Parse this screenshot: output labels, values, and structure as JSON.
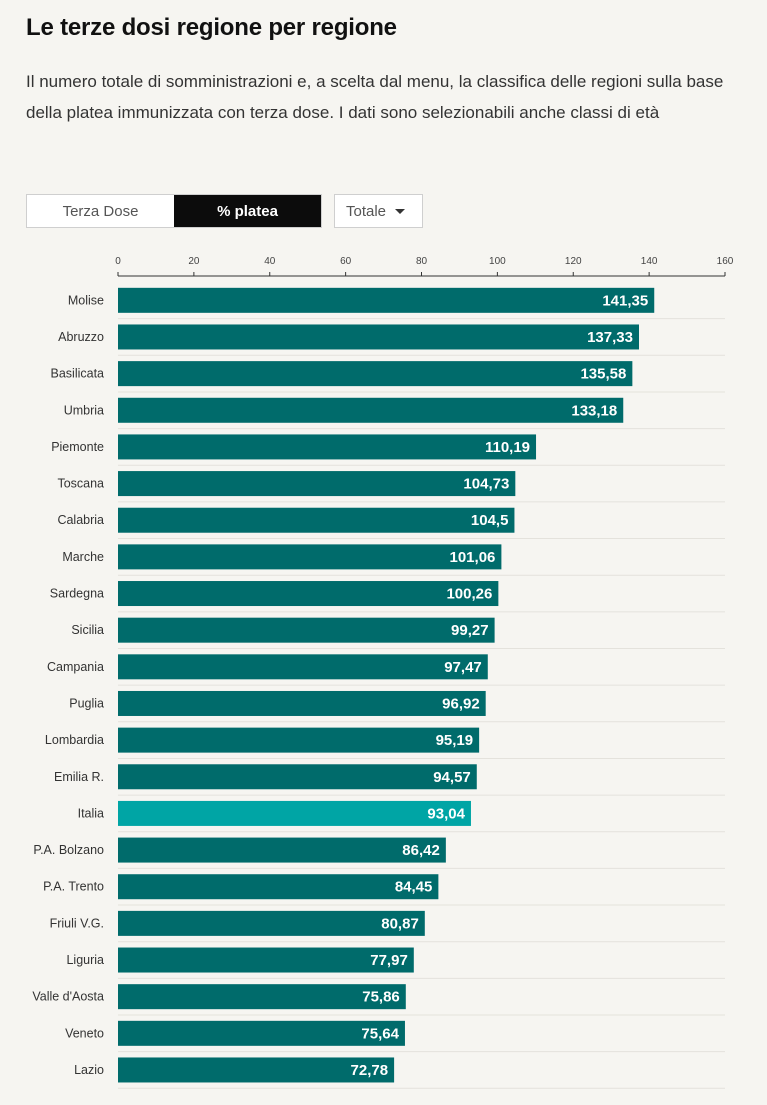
{
  "header": {
    "title": "Le terze dosi regione per regione",
    "subtitle": "Il numero totale di somministrazioni e, a scelta dal menu, la classifica delle regioni sulla base della platea immunizzata con terza dose. I dati sono selezionabili anche classi di età"
  },
  "controls": {
    "toggle": [
      "Terza Dose",
      "% platea"
    ],
    "active_toggle": 1,
    "select_value": "Totale"
  },
  "colors": {
    "bar": "#006b6b",
    "highlight": "#00a5a5",
    "label": "#ffffff"
  },
  "chart_data": {
    "type": "bar",
    "orientation": "horizontal",
    "xlim": [
      0,
      160
    ],
    "ticks": [
      0,
      20,
      40,
      60,
      80,
      100,
      120,
      140,
      160
    ],
    "categories": [
      "Molise",
      "Abruzzo",
      "Basilicata",
      "Umbria",
      "Piemonte",
      "Toscana",
      "Calabria",
      "Marche",
      "Sardegna",
      "Sicilia",
      "Campania",
      "Puglia",
      "Lombardia",
      "Emilia R.",
      "Italia",
      "P.A. Bolzano",
      "P.A. Trento",
      "Friuli V.G.",
      "Liguria",
      "Valle d'Aosta",
      "Veneto",
      "Lazio"
    ],
    "values": [
      141.35,
      137.33,
      135.58,
      133.18,
      110.19,
      104.73,
      104.5,
      101.06,
      100.26,
      99.27,
      97.47,
      96.92,
      95.19,
      94.57,
      93.04,
      86.42,
      84.45,
      80.87,
      77.97,
      75.86,
      75.64,
      72.78
    ],
    "labels": [
      "141,35",
      "137,33",
      "135,58",
      "133,18",
      "110,19",
      "104,73",
      "104,5",
      "101,06",
      "100,26",
      "99,27",
      "97,47",
      "96,92",
      "95,19",
      "94,57",
      "93,04",
      "86,42",
      "84,45",
      "80,87",
      "77,97",
      "75,86",
      "75,64",
      "72,78"
    ],
    "highlight": "Italia",
    "grid": false
  }
}
